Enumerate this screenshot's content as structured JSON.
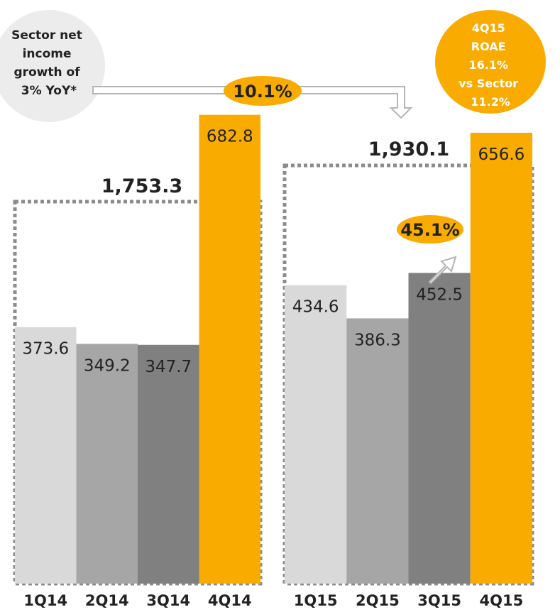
{
  "chart_data": {
    "type": "bar",
    "groups": [
      {
        "total_label": "1,753.3",
        "categories": [
          "1Q14",
          "2Q14",
          "3Q14",
          "4Q14"
        ],
        "values": [
          373.6,
          349.2,
          347.7,
          682.8
        ],
        "value_labels": [
          "373.6",
          "349.2",
          "347.7",
          "682.8"
        ]
      },
      {
        "total_label": "1,930.1",
        "categories": [
          "1Q15",
          "2Q15",
          "3Q15",
          "4Q15"
        ],
        "values": [
          434.6,
          386.3,
          452.5,
          656.6
        ],
        "value_labels": [
          "434.6",
          "386.3",
          "452.5",
          "656.6"
        ]
      }
    ],
    "ylim": [
      0,
      850
    ],
    "grid": false,
    "bar_colors": [
      "#d9d9d9",
      "#a6a6a6",
      "#808080",
      "#f9ab00"
    ],
    "annotations": {
      "sector_bubble": [
        "Sector net",
        "income",
        "growth of",
        "3% YoY*"
      ],
      "yoy_growth": "10.1%",
      "qoq_growth": "45.1%",
      "roae_bubble": [
        "4Q15",
        "ROAE",
        "16.1%",
        "vs Sector",
        "11.2%"
      ]
    }
  },
  "colors": {
    "accent": "#f9ab00",
    "light_gray": "#d9d9d9",
    "mid_gray": "#a6a6a6",
    "dark_gray": "#808080",
    "bubble_gray": "#ececec",
    "text": "#222222"
  }
}
